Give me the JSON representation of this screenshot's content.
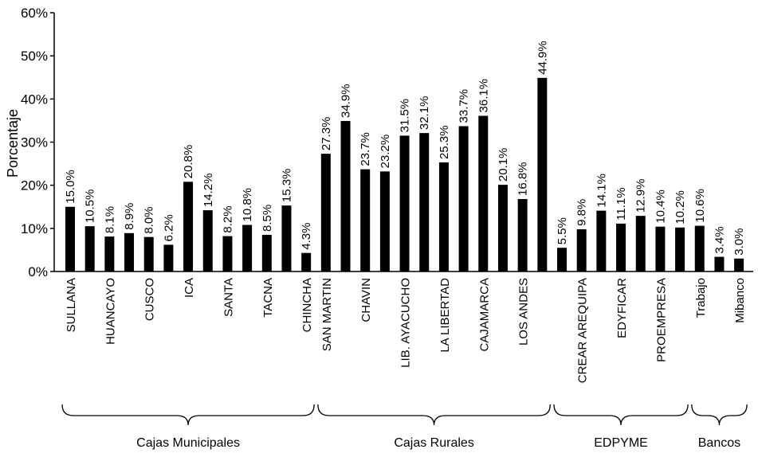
{
  "chart_data": {
    "type": "bar",
    "y_label": "Porcentaje",
    "color": "#000000",
    "ylim": [
      0,
      60
    ],
    "yticks": [
      {
        "value": 0,
        "label": "0%"
      },
      {
        "value": 10,
        "label": "10%"
      },
      {
        "value": 20,
        "label": "20%"
      },
      {
        "value": 30,
        "label": "30%"
      },
      {
        "value": 40,
        "label": "40%"
      },
      {
        "value": 50,
        "label": "50%"
      },
      {
        "value": 60,
        "label": "60%"
      }
    ],
    "groups": [
      {
        "name": "Cajas Municipales",
        "categories": [
          "SULLANA",
          null,
          "HUANCAYO",
          null,
          "CUSCO",
          null,
          "ICA",
          null,
          "SANTA",
          null,
          "TACNA",
          null,
          "CHINCHA"
        ],
        "values": [
          15.0,
          10.5,
          8.1,
          8.9,
          8.0,
          6.2,
          20.8,
          14.2,
          8.2,
          10.8,
          8.5,
          15.3,
          4.3
        ],
        "value_labels": [
          "15.0%",
          "10.5%",
          "8.1%",
          "8.9%",
          "8.0%",
          "6.2%",
          "20.8%",
          "14.2%",
          "8.2%",
          "10.8%",
          "8.5%",
          "15.3%",
          "4.3%"
        ]
      },
      {
        "name": "Cajas Rurales",
        "categories": [
          "SAN MARTIN",
          null,
          "CHAVIN",
          null,
          "LIB. AYACUCHO",
          null,
          "LA LIBERTAD",
          null,
          "CAJAMARCA",
          null,
          "LOS ANDES",
          null
        ],
        "values": [
          27.3,
          34.9,
          23.7,
          23.2,
          31.5,
          32.1,
          25.3,
          33.7,
          36.1,
          20.1,
          16.8,
          44.9
        ],
        "value_labels": [
          "27.3%",
          "34.9%",
          "23.7%",
          "23.2%",
          "31.5%",
          "32.1%",
          "25.3%",
          "33.7%",
          "36.1%",
          "20.1%",
          "16.8%",
          "44.9%"
        ]
      },
      {
        "name": "EDPYME",
        "categories": [
          null,
          "CREAR AREQUIPA",
          null,
          "EDYFICAR",
          null,
          "PROEMPRESA",
          null
        ],
        "values": [
          5.5,
          9.8,
          14.1,
          11.1,
          12.9,
          10.4,
          10.2
        ],
        "value_labels": [
          "5.5%",
          "9.8%",
          "14.1%",
          "11.1%",
          "12.9%",
          "10.4%",
          "10.2%"
        ]
      },
      {
        "name": "Bancos",
        "categories": [
          "Trabajo",
          null,
          "Mibanco"
        ],
        "values": [
          10.6,
          3.4,
          3.0
        ],
        "value_labels": [
          "10.6%",
          "3.4%",
          "3.0%"
        ]
      }
    ]
  }
}
